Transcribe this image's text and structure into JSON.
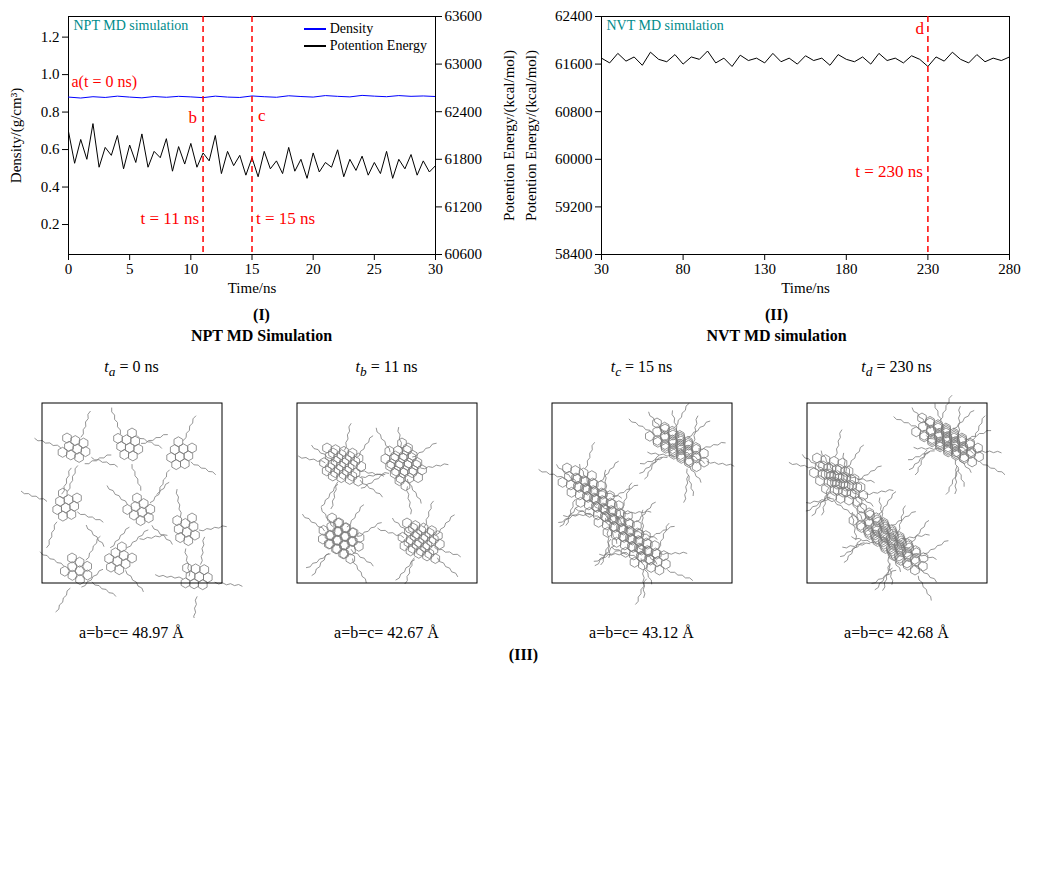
{
  "chart_data": [
    {
      "type": "line",
      "title": "NPT MD simulation",
      "panel_label": "(I)",
      "caption": "NPT MD Simulation",
      "x_label": "Time/ns",
      "y_label": "Density/(g/cm³)",
      "y2_label": "Potention Energy/(kcal/mol)",
      "xlim": [
        0,
        30
      ],
      "xticks": [
        0,
        5,
        10,
        15,
        20,
        25,
        30
      ],
      "ylim": [
        0.04,
        1.31
      ],
      "yticks": [
        0.2,
        0.4,
        0.6,
        0.8,
        {
          "value": 1,
          "label": "1.0"
        },
        1.2
      ],
      "y2lim": [
        60600,
        63600
      ],
      "y2ticks": [
        60600,
        61200,
        61800,
        62400,
        63000,
        63600
      ],
      "legend": "top-right",
      "series": [
        {
          "name": "Density",
          "color": "#0000ff",
          "x": [
            0,
            1,
            2,
            3,
            4,
            5,
            6,
            7,
            8,
            9,
            10,
            11,
            12,
            13,
            14,
            15,
            16,
            17,
            18,
            19,
            20,
            21,
            22,
            23,
            24,
            25,
            26,
            27,
            28,
            29,
            30
          ],
          "values": [
            0.88,
            0.875,
            0.882,
            0.878,
            0.885,
            0.88,
            0.876,
            0.883,
            0.879,
            0.884,
            0.881,
            0.877,
            0.885,
            0.88,
            0.878,
            0.886,
            0.882,
            0.879,
            0.887,
            0.883,
            0.88,
            0.888,
            0.884,
            0.881,
            0.889,
            0.885,
            0.882,
            0.888,
            0.884,
            0.886,
            0.883
          ]
        },
        {
          "name": "Potention Energy",
          "color": "#000000",
          "axis": "y2",
          "x": [
            0,
            0.5,
            1,
            1.5,
            2,
            2.5,
            3,
            3.5,
            4,
            4.5,
            5,
            5.5,
            6,
            6.5,
            7,
            7.5,
            8,
            8.5,
            9,
            9.5,
            10,
            10.5,
            11,
            11.5,
            12,
            12.5,
            13,
            13.5,
            14,
            14.5,
            15,
            15.5,
            16,
            16.5,
            17,
            17.5,
            18,
            18.5,
            19,
            19.5,
            20,
            20.5,
            21,
            21.5,
            22,
            22.5,
            23,
            23.5,
            24,
            24.5,
            25,
            25.5,
            26,
            26.5,
            27,
            27.5,
            28,
            28.5,
            29,
            29.5,
            30
          ],
          "values": [
            62150,
            61750,
            62050,
            61800,
            62250,
            61700,
            61950,
            61850,
            62100,
            61680,
            61980,
            61760,
            62120,
            61700,
            61900,
            61820,
            62060,
            61650,
            61960,
            61740,
            62000,
            61700,
            61880,
            61780,
            62100,
            61620,
            61900,
            61720,
            61850,
            61600,
            61820,
            61580,
            61900,
            61680,
            61780,
            61620,
            61950,
            61650,
            61800,
            61560,
            61880,
            61640,
            61760,
            61700,
            61920,
            61580,
            61800,
            61660,
            61840,
            61600,
            61760,
            61620,
            61900,
            61560,
            61800,
            61680,
            61860,
            61600,
            61780,
            61640,
            61720
          ]
        }
      ],
      "markers": [
        {
          "x": 0,
          "label": "a(t = 0 ns)",
          "line_style": "none",
          "color": "#ff0000"
        },
        {
          "x": 11,
          "label": "b",
          "time_label": "t = 11 ns",
          "line_style": "dashed",
          "color": "#ff0000"
        },
        {
          "x": 15,
          "label": "c",
          "time_label": "t = 15 ns",
          "line_style": "dashed",
          "color": "#ff0000"
        }
      ]
    },
    {
      "type": "line",
      "title": "NVT MD simulation",
      "panel_label": "(II)",
      "caption": "NVT MD simulation",
      "x_label": "Time/ns",
      "y_label": "Potention Energy/(kcal/mol)",
      "xlim": [
        30,
        280
      ],
      "xticks": [
        30,
        80,
        130,
        180,
        230,
        280
      ],
      "ylim": [
        58400,
        62400
      ],
      "yticks": [
        58400,
        59200,
        60000,
        60800,
        61600,
        62400
      ],
      "color": "#000000",
      "x": [
        30,
        35,
        40,
        45,
        50,
        55,
        60,
        65,
        70,
        75,
        80,
        85,
        90,
        95,
        100,
        105,
        110,
        115,
        120,
        125,
        130,
        135,
        140,
        145,
        150,
        155,
        160,
        165,
        170,
        175,
        180,
        185,
        190,
        195,
        200,
        205,
        210,
        215,
        220,
        225,
        230,
        235,
        240,
        245,
        250,
        255,
        260,
        265,
        270,
        275,
        280
      ],
      "values": [
        61700,
        61620,
        61780,
        61650,
        61720,
        61580,
        61800,
        61680,
        61640,
        61760,
        61600,
        61720,
        61680,
        61820,
        61620,
        61700,
        61560,
        61750,
        61660,
        61700,
        61620,
        61780,
        61640,
        61700,
        61600,
        61740,
        61660,
        61700,
        61580,
        61760,
        61680,
        61640,
        61720,
        61600,
        61780,
        61660,
        61700,
        61620,
        61740,
        61680,
        61560,
        61720,
        61650,
        61800,
        61680,
        61620,
        61760,
        61640,
        61700,
        61660,
        61720
      ],
      "markers": [
        {
          "x": 230,
          "label": "d",
          "time_label": "t = 230 ns",
          "line_style": "dashed",
          "color": "#ff0000"
        }
      ]
    }
  ],
  "snapshots": {
    "panel_label": "(III)",
    "items": [
      {
        "var": "t",
        "sub": "a",
        "time": "= 0 ns",
        "box": "a=b=c= 48.97 Å"
      },
      {
        "var": "t",
        "sub": "b",
        "time": "= 11 ns",
        "box": "a=b=c= 42.67 Å"
      },
      {
        "var": "t",
        "sub": "c",
        "time": "= 15 ns",
        "box": "a=b=c= 43.12 Å"
      },
      {
        "var": "t",
        "sub": "d",
        "time": "= 230 ns",
        "box": "a=b=c= 42.68 Å"
      }
    ]
  }
}
